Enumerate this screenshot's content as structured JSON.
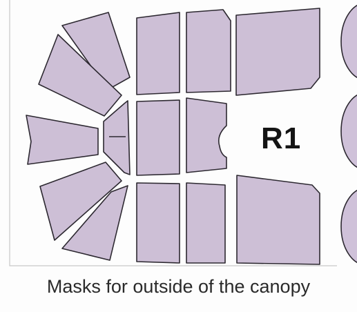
{
  "sheet": {
    "label": "R1",
    "mask_fill_color": "#cdbfd6",
    "outline_color": "#2c2830"
  },
  "caption": {
    "text": "Masks for outside of the canopy"
  }
}
